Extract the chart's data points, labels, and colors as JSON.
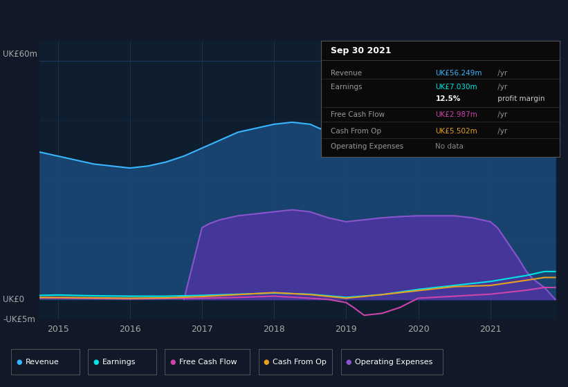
{
  "bg_color": "#111827",
  "plot_bg_color": "#0f1e2e",
  "grid_color": "#1e3a5f",
  "title_box": {
    "date": "Sep 30 2021",
    "rows": [
      {
        "label": "Revenue",
        "value": "UK£56.249m",
        "unit": " /yr",
        "value_color": "#38b6ff"
      },
      {
        "label": "Earnings",
        "value": "UK£7.030m",
        "unit": " /yr",
        "value_color": "#00e5e5"
      },
      {
        "label": "",
        "value": "12.5%",
        "unit": " profit margin",
        "value_color": "#ffffff",
        "unit_color": "#cccccc"
      },
      {
        "label": "Free Cash Flow",
        "value": "UK£2.987m",
        "unit": " /yr",
        "value_color": "#cc44aa"
      },
      {
        "label": "Cash From Op",
        "value": "UK£5.502m",
        "unit": " /yr",
        "value_color": "#e8a020"
      },
      {
        "label": "Operating Expenses",
        "value": "No data",
        "unit": "",
        "value_color": "#888888"
      }
    ]
  },
  "ylim": [
    -5,
    65
  ],
  "y_zero": 0,
  "y_top": 60,
  "y_bot": -5,
  "xlim_left": 2014.75,
  "xlim_right": 2021.92,
  "xticks": [
    2015,
    2016,
    2017,
    2018,
    2019,
    2020,
    2021
  ],
  "series": {
    "revenue": {
      "color": "#38b6ff",
      "fill_color": "#1a4a7a",
      "fill_alpha": 0.85,
      "label": "Revenue",
      "x": [
        2014.75,
        2015.0,
        2015.25,
        2015.5,
        2015.75,
        2016.0,
        2016.25,
        2016.5,
        2016.75,
        2017.0,
        2017.25,
        2017.5,
        2017.75,
        2018.0,
        2018.25,
        2018.5,
        2018.75,
        2019.0,
        2019.25,
        2019.5,
        2019.75,
        2020.0,
        2020.25,
        2020.5,
        2020.75,
        2021.0,
        2021.25,
        2021.5,
        2021.75,
        2021.9
      ],
      "y": [
        37,
        36,
        35,
        34,
        33.5,
        33,
        33.5,
        34.5,
        36,
        38,
        40,
        42,
        43,
        44,
        44.5,
        44,
        42,
        38,
        39,
        43,
        48,
        53,
        56,
        56,
        55,
        55,
        55,
        56,
        56.2,
        56.2
      ]
    },
    "earnings": {
      "color": "#00e5e5",
      "fill": false,
      "label": "Earnings",
      "x": [
        2014.75,
        2015.0,
        2015.5,
        2016.0,
        2016.5,
        2017.0,
        2017.5,
        2018.0,
        2018.5,
        2019.0,
        2019.5,
        2020.0,
        2020.5,
        2021.0,
        2021.5,
        2021.75,
        2021.9
      ],
      "y": [
        1.0,
        1.1,
        0.9,
        0.8,
        0.8,
        1.0,
        1.3,
        1.6,
        1.3,
        0.5,
        1.2,
        2.5,
        3.5,
        4.5,
        6.0,
        7.0,
        7.0
      ]
    },
    "free_cash_flow": {
      "color": "#cc44aa",
      "fill": false,
      "label": "Free Cash Flow",
      "x": [
        2014.75,
        2015.0,
        2015.5,
        2016.0,
        2016.5,
        2017.0,
        2017.5,
        2018.0,
        2018.5,
        2018.75,
        2019.0,
        2019.1,
        2019.25,
        2019.5,
        2019.75,
        2020.0,
        2020.5,
        2021.0,
        2021.5,
        2021.75,
        2021.9
      ],
      "y": [
        0.3,
        0.3,
        0.2,
        0.1,
        0.2,
        0.3,
        0.5,
        0.8,
        0.3,
        0.0,
        -0.8,
        -2.0,
        -4.0,
        -3.5,
        -2.0,
        0.3,
        0.8,
        1.3,
        2.3,
        2.987,
        2.987
      ]
    },
    "cash_from_op": {
      "color": "#e8a020",
      "fill": false,
      "label": "Cash From Op",
      "x": [
        2014.75,
        2015.0,
        2015.5,
        2016.0,
        2016.5,
        2017.0,
        2017.5,
        2018.0,
        2018.5,
        2019.0,
        2019.5,
        2020.0,
        2020.5,
        2021.0,
        2021.5,
        2021.75,
        2021.9
      ],
      "y": [
        0.5,
        0.5,
        0.4,
        0.3,
        0.4,
        0.7,
        1.2,
        1.7,
        1.2,
        0.3,
        1.2,
        2.2,
        3.2,
        3.5,
        4.8,
        5.502,
        5.502
      ]
    },
    "operating_expenses": {
      "color": "#8855cc",
      "fill_color": "#5533aa",
      "fill_alpha": 0.75,
      "label": "Operating Expenses",
      "x": [
        2016.75,
        2017.0,
        2017.1,
        2017.25,
        2017.5,
        2017.75,
        2018.0,
        2018.25,
        2018.5,
        2018.75,
        2019.0,
        2019.25,
        2019.5,
        2019.75,
        2020.0,
        2020.25,
        2020.5,
        2020.75,
        2021.0,
        2021.1,
        2021.25,
        2021.4,
        2021.5,
        2021.6,
        2021.75,
        2021.9
      ],
      "y": [
        0,
        18,
        19,
        20,
        21,
        21.5,
        22,
        22.5,
        22,
        20.5,
        19.5,
        20,
        20.5,
        20.8,
        21,
        21,
        21,
        20.5,
        19.5,
        18,
        14,
        10,
        7,
        5,
        3,
        0
      ]
    }
  },
  "legend": [
    {
      "label": "Revenue",
      "color": "#38b6ff"
    },
    {
      "label": "Earnings",
      "color": "#00e5e5"
    },
    {
      "label": "Free Cash Flow",
      "color": "#cc44aa"
    },
    {
      "label": "Cash From Op",
      "color": "#e8a020"
    },
    {
      "label": "Operating Expenses",
      "color": "#8855cc"
    }
  ]
}
